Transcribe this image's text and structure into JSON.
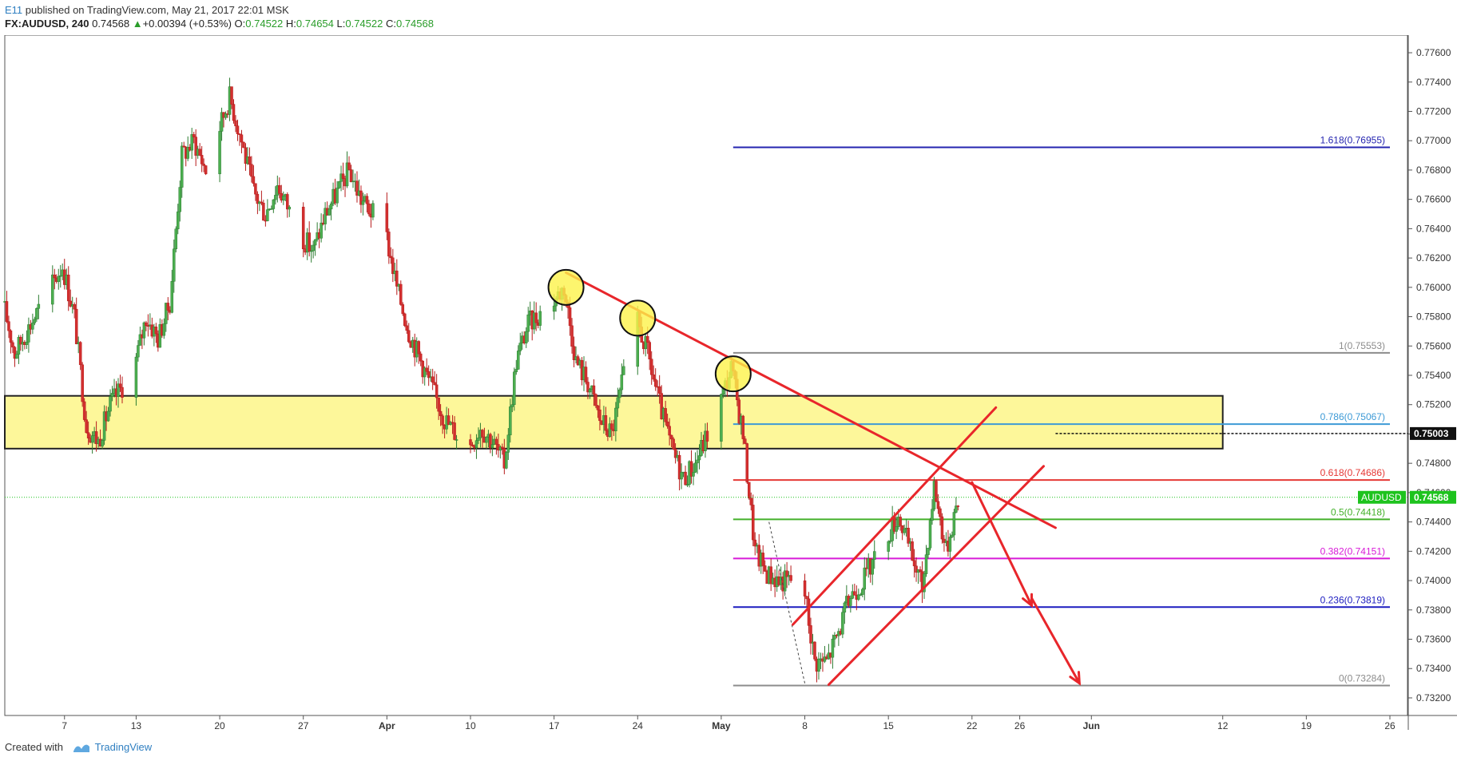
{
  "header": {
    "author": "E11",
    "published_text": "published on TradingView.com, May 21, 2017 22:01 MSK",
    "symbol": "FX:AUDUSD, 240",
    "last": "0.74568",
    "change": "+0.00394 (+0.53%)",
    "change_arrow": "▲",
    "o_label": "O:",
    "o_value": "0.74522",
    "h_label": "H:",
    "h_value": "0.74654",
    "l_label": "L:",
    "l_value": "0.74522",
    "c_label": "C:",
    "c_value": "0.74568"
  },
  "footer": {
    "created_with": "Created with",
    "brand": "TradingView"
  },
  "chart_data": {
    "type": "candlestick",
    "symbol": "FX:AUDUSD",
    "interval": "240",
    "ylim": [
      0.7308,
      0.7772
    ],
    "y_ticks": [
      "0.77600",
      "0.77400",
      "0.77200",
      "0.77000",
      "0.76800",
      "0.76600",
      "0.76400",
      "0.76200",
      "0.76000",
      "0.75800",
      "0.75600",
      "0.75400",
      "0.75200",
      "0.75000",
      "0.74800",
      "0.74600",
      "0.74400",
      "0.74200",
      "0.74000",
      "0.73800",
      "0.73600",
      "0.73400",
      "0.73200"
    ],
    "x_axis_start": "2017-03-02",
    "x_axis_end": "2017-06-26",
    "x_ticks": [
      {
        "date": "2017-03-07",
        "label": "7"
      },
      {
        "date": "2017-03-13",
        "label": "13"
      },
      {
        "date": "2017-03-20",
        "label": "20"
      },
      {
        "date": "2017-03-27",
        "label": "27"
      },
      {
        "date": "2017-04-03",
        "label": "Apr"
      },
      {
        "date": "2017-04-10",
        "label": "10"
      },
      {
        "date": "2017-04-17",
        "label": "17"
      },
      {
        "date": "2017-04-24",
        "label": "24"
      },
      {
        "date": "2017-05-01",
        "label": "May"
      },
      {
        "date": "2017-05-08",
        "label": "8"
      },
      {
        "date": "2017-05-15",
        "label": "15"
      },
      {
        "date": "2017-05-22",
        "label": "22"
      },
      {
        "date": "2017-05-26",
        "label": "26"
      },
      {
        "date": "2017-06-01",
        "label": "Jun"
      },
      {
        "date": "2017-06-12",
        "label": "12"
      },
      {
        "date": "2017-06-19",
        "label": "19"
      },
      {
        "date": "2017-06-26",
        "label": "26"
      }
    ],
    "price_path": [
      [
        "2017-03-02",
        0.759
      ],
      [
        "2017-03-03",
        0.7555
      ],
      [
        "2017-03-04",
        0.757
      ],
      [
        "2017-03-06",
        0.76
      ],
      [
        "2017-03-07",
        0.7615
      ],
      [
        "2017-03-08",
        0.758
      ],
      [
        "2017-03-09",
        0.7505
      ],
      [
        "2017-03-10",
        0.7495
      ],
      [
        "2017-03-11",
        0.752
      ],
      [
        "2017-03-13",
        0.7545
      ],
      [
        "2017-03-14",
        0.758
      ],
      [
        "2017-03-15",
        0.7565
      ],
      [
        "2017-03-16",
        0.759
      ],
      [
        "2017-03-17",
        0.769
      ],
      [
        "2017-03-18",
        0.77
      ],
      [
        "2017-03-19",
        0.768
      ],
      [
        "2017-03-20",
        0.7705
      ],
      [
        "2017-03-21",
        0.773
      ],
      [
        "2017-03-22",
        0.77
      ],
      [
        "2017-03-23",
        0.7665
      ],
      [
        "2017-03-24",
        0.765
      ],
      [
        "2017-03-25",
        0.767
      ],
      [
        "2017-03-27",
        0.7635
      ],
      [
        "2017-03-28",
        0.7625
      ],
      [
        "2017-03-29",
        0.765
      ],
      [
        "2017-03-30",
        0.7665
      ],
      [
        "2017-03-31",
        0.768
      ],
      [
        "2017-04-01",
        0.766
      ],
      [
        "2017-04-03",
        0.764
      ],
      [
        "2017-04-04",
        0.76
      ],
      [
        "2017-04-05",
        0.757
      ],
      [
        "2017-04-06",
        0.755
      ],
      [
        "2017-04-07",
        0.753
      ],
      [
        "2017-04-08",
        0.751
      ],
      [
        "2017-04-10",
        0.749
      ],
      [
        "2017-04-11",
        0.7505
      ],
      [
        "2017-04-12",
        0.7495
      ],
      [
        "2017-04-13",
        0.748
      ],
      [
        "2017-04-14",
        0.755
      ],
      [
        "2017-04-15",
        0.7575
      ],
      [
        "2017-04-17",
        0.759
      ],
      [
        "2017-04-18",
        0.76
      ],
      [
        "2017-04-19",
        0.755
      ],
      [
        "2017-04-20",
        0.7535
      ],
      [
        "2017-04-21",
        0.751
      ],
      [
        "2017-04-22",
        0.75
      ],
      [
        "2017-04-24",
        0.758
      ],
      [
        "2017-04-25",
        0.7555
      ],
      [
        "2017-04-26",
        0.752
      ],
      [
        "2017-04-27",
        0.749
      ],
      [
        "2017-04-28",
        0.747
      ],
      [
        "2017-04-29",
        0.748
      ],
      [
        "2017-05-01",
        0.752
      ],
      [
        "2017-05-02",
        0.7545
      ],
      [
        "2017-05-03",
        0.75
      ],
      [
        "2017-05-04",
        0.742
      ],
      [
        "2017-05-05",
        0.7405
      ],
      [
        "2017-05-06",
        0.74
      ],
      [
        "2017-05-08",
        0.74
      ],
      [
        "2017-05-09",
        0.7345
      ],
      [
        "2017-05-10",
        0.7345
      ],
      [
        "2017-05-11",
        0.7365
      ],
      [
        "2017-05-12",
        0.739
      ],
      [
        "2017-05-13",
        0.74
      ],
      [
        "2017-05-15",
        0.743
      ],
      [
        "2017-05-16",
        0.7445
      ],
      [
        "2017-05-17",
        0.742
      ],
      [
        "2017-05-18",
        0.7395
      ],
      [
        "2017-05-19",
        0.7465
      ],
      [
        "2017-05-20",
        0.742
      ],
      [
        "2017-05-21",
        0.7457
      ]
    ],
    "last_price": "0.74568",
    "last_price_label": "AUDUSD",
    "fibonacci": [
      {
        "label": "1.618(0.76955)",
        "value": 0.76955,
        "color": "#2525b0"
      },
      {
        "label": "1(0.75553)",
        "value": 0.75553,
        "color": "#8c8c8c"
      },
      {
        "label": "0.786(0.75067)",
        "value": 0.75067,
        "color": "#3d9ad6"
      },
      {
        "label": "0.618(0.74686)",
        "value": 0.74686,
        "color": "#e53935"
      },
      {
        "label": "0.5(0.74418)",
        "value": 0.74418,
        "color": "#43b02a"
      },
      {
        "label": "0.382(0.74151)",
        "value": 0.74151,
        "color": "#d81bd8"
      },
      {
        "label": "0.236(0.73819)",
        "value": 0.73819,
        "color": "#1c1cc0"
      },
      {
        "label": "0(0.73284)",
        "value": 0.73284,
        "color": "#8c8c8c"
      }
    ],
    "fib_start": "2017-05-02",
    "fib_end": "2017-06-26",
    "horizontal_line": {
      "value": 0.75003,
      "label": "0.75003"
    },
    "support_zone": {
      "from_date": "2017-03-02",
      "to_date": "2017-06-12",
      "low": 0.749,
      "high": 0.7526,
      "color": "#fdf79a"
    },
    "circles": [
      [
        "2017-04-18",
        0.76
      ],
      [
        "2017-04-24",
        0.7579
      ],
      [
        "2017-05-02",
        0.7541
      ]
    ],
    "red_lines": [
      [
        [
          "2017-04-18",
          0.761
        ],
        [
          "2017-05-29",
          0.7436
        ]
      ],
      [
        [
          "2017-05-07",
          0.737
        ],
        [
          "2017-05-24",
          0.7518
        ]
      ],
      [
        [
          "2017-05-10",
          0.7329
        ],
        [
          "2017-05-28",
          0.7478
        ]
      ],
      [
        [
          "2017-05-22",
          0.7467
        ],
        [
          "2017-05-27",
          0.7383
        ]
      ],
      [
        [
          "2017-05-27",
          0.7388
        ],
        [
          "2017-05-31",
          0.733
        ]
      ]
    ],
    "colors": {
      "up": "#4caf50",
      "down": "#d32f2f",
      "up_border": "#2e7d32",
      "down_border": "#b71c1c",
      "price_tag": "#1ec31e"
    }
  }
}
